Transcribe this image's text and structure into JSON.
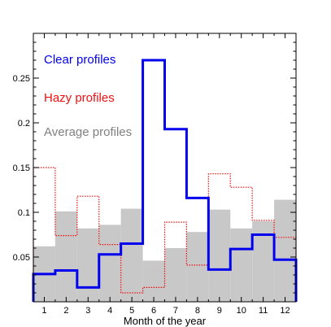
{
  "chart_data": {
    "type": "bar",
    "title": "",
    "xlabel": "Month of the year",
    "ylabel": "",
    "x": [
      1,
      2,
      3,
      4,
      5,
      6,
      7,
      8,
      9,
      10,
      11,
      12
    ],
    "xlim": [
      0.5,
      12.5
    ],
    "ylim": [
      0,
      0.3
    ],
    "yticks": [
      0.05,
      0.1,
      0.15,
      0.2,
      0.25
    ],
    "ytick_labels": [
      "0.05",
      "0.1",
      "0.15",
      "0.2",
      "0.25"
    ],
    "xtick_labels": [
      "1",
      "2",
      "3",
      "4",
      "5",
      "6",
      "7",
      "8",
      "9",
      "10",
      "11",
      "12"
    ],
    "grid": false,
    "legend_placement": "top-left",
    "series": [
      {
        "name": "Average profiles",
        "style": "filled",
        "color": "#c8c8c8",
        "values": [
          0.062,
          0.101,
          0.082,
          0.086,
          0.104,
          0.046,
          0.06,
          0.078,
          0.103,
          0.082,
          0.09,
          0.114
        ]
      },
      {
        "name": "Hazy profiles",
        "style": "dotted",
        "color": "#ee1111",
        "values": [
          0.15,
          0.074,
          0.118,
          0.064,
          0.01,
          0.016,
          0.089,
          0.041,
          0.143,
          0.128,
          0.091,
          0.072
        ]
      },
      {
        "name": "Clear profiles",
        "style": "solid",
        "color": "#0000ee",
        "values": [
          0.031,
          0.035,
          0.016,
          0.053,
          0.065,
          0.27,
          0.193,
          0.116,
          0.036,
          0.059,
          0.075,
          0.047
        ]
      }
    ],
    "legend": [
      {
        "label": "Clear profiles",
        "color": "#0000ee"
      },
      {
        "label": "Hazy profiles",
        "color": "#ee1111"
      },
      {
        "label": "Average profiles",
        "color": "#808080"
      }
    ]
  }
}
